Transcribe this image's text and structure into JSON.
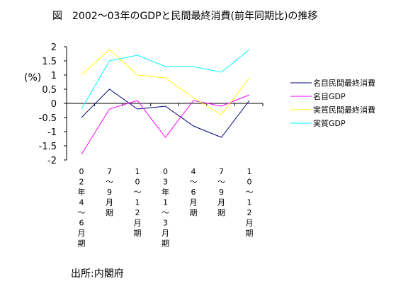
{
  "title": "図　2002～03年のGDPと民間最終消費(前年同期比)の推移",
  "source": "出所:内閣府",
  "chart_data": {
    "type": "line",
    "categories": [
      "02年4～6月期",
      "7～9月期",
      "10～12月期",
      "03年1～3月期",
      "4～6月期",
      "7～9月期",
      "10～12月期"
    ],
    "series": [
      {
        "name": "名目民間最終消費",
        "color": "#000080",
        "values": [
          -0.5,
          0.5,
          -0.2,
          -0.1,
          -0.8,
          -1.2,
          0.1
        ]
      },
      {
        "name": "名目GDP",
        "color": "#ff00ff",
        "values": [
          -1.8,
          -0.2,
          0.1,
          -1.2,
          0.1,
          -0.1,
          0.3
        ]
      },
      {
        "name": "実質民間最終消費",
        "color": "#ffff00",
        "values": [
          1.0,
          1.9,
          1.0,
          0.9,
          0.2,
          -0.4,
          0.9
        ]
      },
      {
        "name": "実質GDP",
        "color": "#00ffff",
        "values": [
          -0.2,
          1.5,
          1.7,
          1.3,
          1.3,
          1.1,
          1.9
        ]
      }
    ],
    "ylabel": "(%)",
    "ylim": [
      -2,
      2
    ],
    "yticks": [
      "2",
      "1.5",
      "1",
      "0.5",
      "0",
      "-0.5",
      "-1",
      "-1.5",
      "-2"
    ],
    "legend_position": "right",
    "grid": false
  }
}
